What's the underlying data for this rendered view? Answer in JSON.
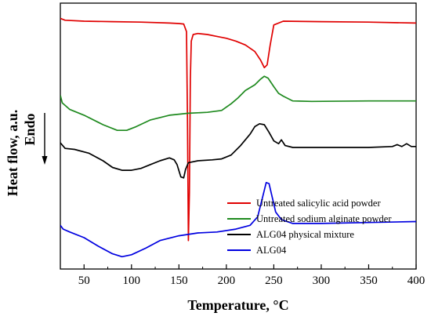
{
  "chart_data": {
    "type": "line",
    "xlabel": "Temperature, °C",
    "ylabel": "Heat flow, a.u.",
    "y_direction_label": "Endo",
    "xlim": [
      25,
      400
    ],
    "xticks": [
      50,
      100,
      150,
      200,
      250,
      300,
      350,
      400
    ],
    "yticks_shown": false,
    "grid": false,
    "legend_position": "bottom-right",
    "series": [
      {
        "name": "Untreated salicylic acid powder",
        "color": "#e00000",
        "points": [
          [
            25,
            16
          ],
          [
            30,
            18
          ],
          [
            50,
            19
          ],
          [
            80,
            19.5
          ],
          [
            110,
            20
          ],
          [
            140,
            21
          ],
          [
            150,
            21.5
          ],
          [
            155,
            22
          ],
          [
            158,
            30
          ],
          [
            159,
            120
          ],
          [
            160,
            250
          ],
          [
            161,
            200
          ],
          [
            162,
            80
          ],
          [
            163,
            40
          ],
          [
            165,
            33
          ],
          [
            170,
            32
          ],
          [
            180,
            33
          ],
          [
            190,
            35
          ],
          [
            200,
            37
          ],
          [
            210,
            40
          ],
          [
            220,
            44
          ],
          [
            230,
            51
          ],
          [
            236,
            60
          ],
          [
            240,
            68
          ],
          [
            243,
            65
          ],
          [
            246,
            45
          ],
          [
            250,
            23
          ],
          [
            260,
            19
          ],
          [
            300,
            19.5
          ],
          [
            350,
            20
          ],
          [
            400,
            21
          ]
        ]
      },
      {
        "name": "Untreated sodium alginate powder",
        "color": "#1f8a1f",
        "points": [
          [
            25,
            97
          ],
          [
            27,
            105
          ],
          [
            35,
            112
          ],
          [
            50,
            118
          ],
          [
            70,
            128
          ],
          [
            85,
            134
          ],
          [
            95,
            134
          ],
          [
            105,
            130
          ],
          [
            120,
            123
          ],
          [
            140,
            118
          ],
          [
            160,
            116
          ],
          [
            180,
            115
          ],
          [
            195,
            113
          ],
          [
            205,
            106
          ],
          [
            212,
            100
          ],
          [
            220,
            92
          ],
          [
            230,
            86
          ],
          [
            236,
            80
          ],
          [
            240,
            77
          ],
          [
            244,
            79
          ],
          [
            250,
            88
          ],
          [
            255,
            95
          ],
          [
            260,
            98
          ],
          [
            270,
            103
          ],
          [
            290,
            103.5
          ],
          [
            350,
            103
          ],
          [
            400,
            103
          ]
        ]
      },
      {
        "name": "ALG04 physical mixture",
        "color": "#000000",
        "points": [
          [
            25,
            147
          ],
          [
            30,
            153
          ],
          [
            40,
            154
          ],
          [
            55,
            158
          ],
          [
            70,
            166
          ],
          [
            80,
            173
          ],
          [
            90,
            176
          ],
          [
            100,
            176
          ],
          [
            110,
            174
          ],
          [
            120,
            170
          ],
          [
            130,
            166
          ],
          [
            140,
            163
          ],
          [
            145,
            165
          ],
          [
            148,
            170
          ],
          [
            152,
            183
          ],
          [
            155,
            184
          ],
          [
            157,
            175
          ],
          [
            160,
            168
          ],
          [
            170,
            166
          ],
          [
            185,
            165
          ],
          [
            195,
            164
          ],
          [
            205,
            160
          ],
          [
            215,
            150
          ],
          [
            225,
            138
          ],
          [
            230,
            130
          ],
          [
            235,
            127
          ],
          [
            240,
            128
          ],
          [
            245,
            136
          ],
          [
            250,
            145
          ],
          [
            255,
            148
          ],
          [
            258,
            144
          ],
          [
            262,
            150
          ],
          [
            270,
            152
          ],
          [
            300,
            152
          ],
          [
            350,
            152
          ],
          [
            375,
            151
          ],
          [
            380,
            149
          ],
          [
            385,
            151
          ],
          [
            390,
            148
          ],
          [
            395,
            151
          ],
          [
            400,
            151
          ]
        ]
      },
      {
        "name": "ALG04",
        "color": "#0000e0",
        "points": [
          [
            25,
            234
          ],
          [
            28,
            238
          ],
          [
            35,
            241
          ],
          [
            50,
            247
          ],
          [
            65,
            256
          ],
          [
            80,
            264
          ],
          [
            90,
            267
          ],
          [
            100,
            265
          ],
          [
            115,
            258
          ],
          [
            130,
            250
          ],
          [
            150,
            245
          ],
          [
            170,
            242
          ],
          [
            190,
            241
          ],
          [
            210,
            238
          ],
          [
            225,
            234
          ],
          [
            233,
            225
          ],
          [
            238,
            205
          ],
          [
            242,
            189
          ],
          [
            245,
            190
          ],
          [
            248,
            203
          ],
          [
            252,
            220
          ],
          [
            258,
            228
          ],
          [
            270,
            232
          ],
          [
            300,
            232
          ],
          [
            350,
            231
          ],
          [
            400,
            230
          ]
        ]
      }
    ]
  }
}
